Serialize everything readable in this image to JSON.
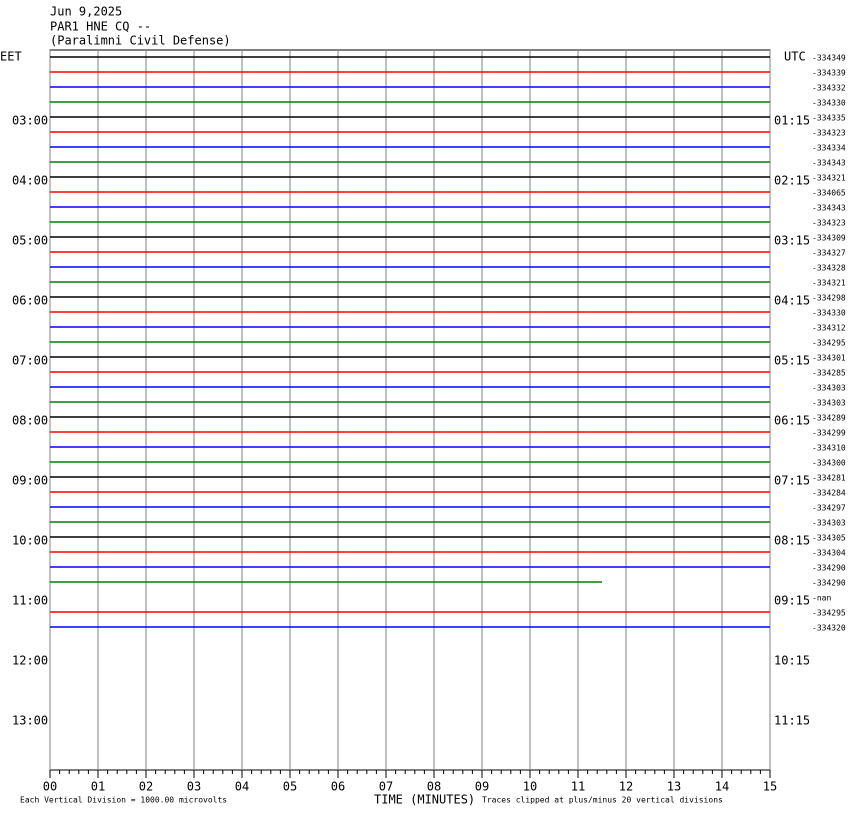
{
  "chart_data": {
    "type": "helicorder",
    "title_lines": [
      "Jun 9,2025",
      "PAR1 HNE CQ --",
      "(Paralimni Civil Defense)"
    ],
    "left_zone": "EET",
    "right_zone": "UTC",
    "xlabel": "TIME (MINUTES)",
    "scale_note": "Each Vertical Division = 1000.00 microvolts",
    "clip_note": "Traces clipped at plus/minus 20 vertical divisions",
    "xlim": [
      0,
      15
    ],
    "xticks": [
      {
        "value": 0,
        "label": "00"
      },
      {
        "value": 1,
        "label": "01"
      },
      {
        "value": 2,
        "label": "02"
      },
      {
        "value": 3,
        "label": "03"
      },
      {
        "value": 4,
        "label": "04"
      },
      {
        "value": 5,
        "label": "05"
      },
      {
        "value": 6,
        "label": "06"
      },
      {
        "value": 7,
        "label": "07"
      },
      {
        "value": 8,
        "label": "08"
      },
      {
        "value": 9,
        "label": "09"
      },
      10,
      11,
      12,
      13,
      14,
      15
    ],
    "grid": true,
    "left_labels": [
      "03:00",
      "04:00",
      "05:00",
      "06:00",
      "07:00",
      "08:00",
      "09:00",
      "10:00",
      "11:00",
      "12:00",
      "13:00"
    ],
    "right_labels": [
      "01:15",
      "02:15",
      "03:15",
      "04:15",
      "05:15",
      "06:15",
      "07:15",
      "08:15",
      "09:15",
      "10:15",
      "11:15"
    ],
    "rows": [
      {
        "offset_label": "-334349",
        "color": "#000000",
        "end": 15
      },
      {
        "offset_label": "-334339",
        "color": "#ff0000",
        "end": 15
      },
      {
        "offset_label": "-334332",
        "color": "#0000ff",
        "end": 15
      },
      {
        "offset_label": "-334330",
        "color": "#008000",
        "end": 15
      },
      {
        "offset_label": "-334335",
        "color": "#000000",
        "end": 15
      },
      {
        "offset_label": "-334323",
        "color": "#ff0000",
        "end": 15
      },
      {
        "offset_label": "-334334",
        "color": "#0000ff",
        "end": 15
      },
      {
        "offset_label": "-334343",
        "color": "#008000",
        "end": 15
      },
      {
        "offset_label": "-334321",
        "color": "#000000",
        "end": 15
      },
      {
        "offset_label": "-334065",
        "color": "#ff0000",
        "end": 15
      },
      {
        "offset_label": "-334343",
        "color": "#0000ff",
        "end": 15
      },
      {
        "offset_label": "-334323",
        "color": "#008000",
        "end": 15
      },
      {
        "offset_label": "-334309",
        "color": "#000000",
        "end": 15
      },
      {
        "offset_label": "-334327",
        "color": "#ff0000",
        "end": 15
      },
      {
        "offset_label": "-334328",
        "color": "#0000ff",
        "end": 15
      },
      {
        "offset_label": "-334321",
        "color": "#008000",
        "end": 15
      },
      {
        "offset_label": "-334298",
        "color": "#000000",
        "end": 15
      },
      {
        "offset_label": "-334330",
        "color": "#ff0000",
        "end": 15
      },
      {
        "offset_label": "-334312",
        "color": "#0000ff",
        "end": 15
      },
      {
        "offset_label": "-334295",
        "color": "#008000",
        "end": 15
      },
      {
        "offset_label": "-334301",
        "color": "#000000",
        "end": 15
      },
      {
        "offset_label": "-334285",
        "color": "#ff0000",
        "end": 15
      },
      {
        "offset_label": "-334303",
        "color": "#0000ff",
        "end": 15
      },
      {
        "offset_label": "-334303",
        "color": "#008000",
        "end": 15
      },
      {
        "offset_label": "-334289",
        "color": "#000000",
        "end": 15
      },
      {
        "offset_label": "-334299",
        "color": "#ff0000",
        "end": 15
      },
      {
        "offset_label": "-334310",
        "color": "#0000ff",
        "end": 15
      },
      {
        "offset_label": "-334300",
        "color": "#008000",
        "end": 15
      },
      {
        "offset_label": "-334281",
        "color": "#000000",
        "end": 15
      },
      {
        "offset_label": "-334284",
        "color": "#ff0000",
        "end": 15
      },
      {
        "offset_label": "-334297",
        "color": "#0000ff",
        "end": 15
      },
      {
        "offset_label": "-334303",
        "color": "#008000",
        "end": 15
      },
      {
        "offset_label": "-334305",
        "color": "#000000",
        "end": 15
      },
      {
        "offset_label": "-334304",
        "color": "#ff0000",
        "end": 15
      },
      {
        "offset_label": "-334290",
        "color": "#0000ff",
        "end": 15
      },
      {
        "offset_label": "-334290",
        "color": "#008000",
        "end": 11.5
      },
      {
        "offset_label": "-nan",
        "color": "#000000",
        "end": null
      },
      {
        "offset_label": "-334295",
        "color": "#ff0000",
        "end": 15
      },
      {
        "offset_label": "-334320",
        "color": "#0000ff",
        "end": 15
      }
    ]
  }
}
